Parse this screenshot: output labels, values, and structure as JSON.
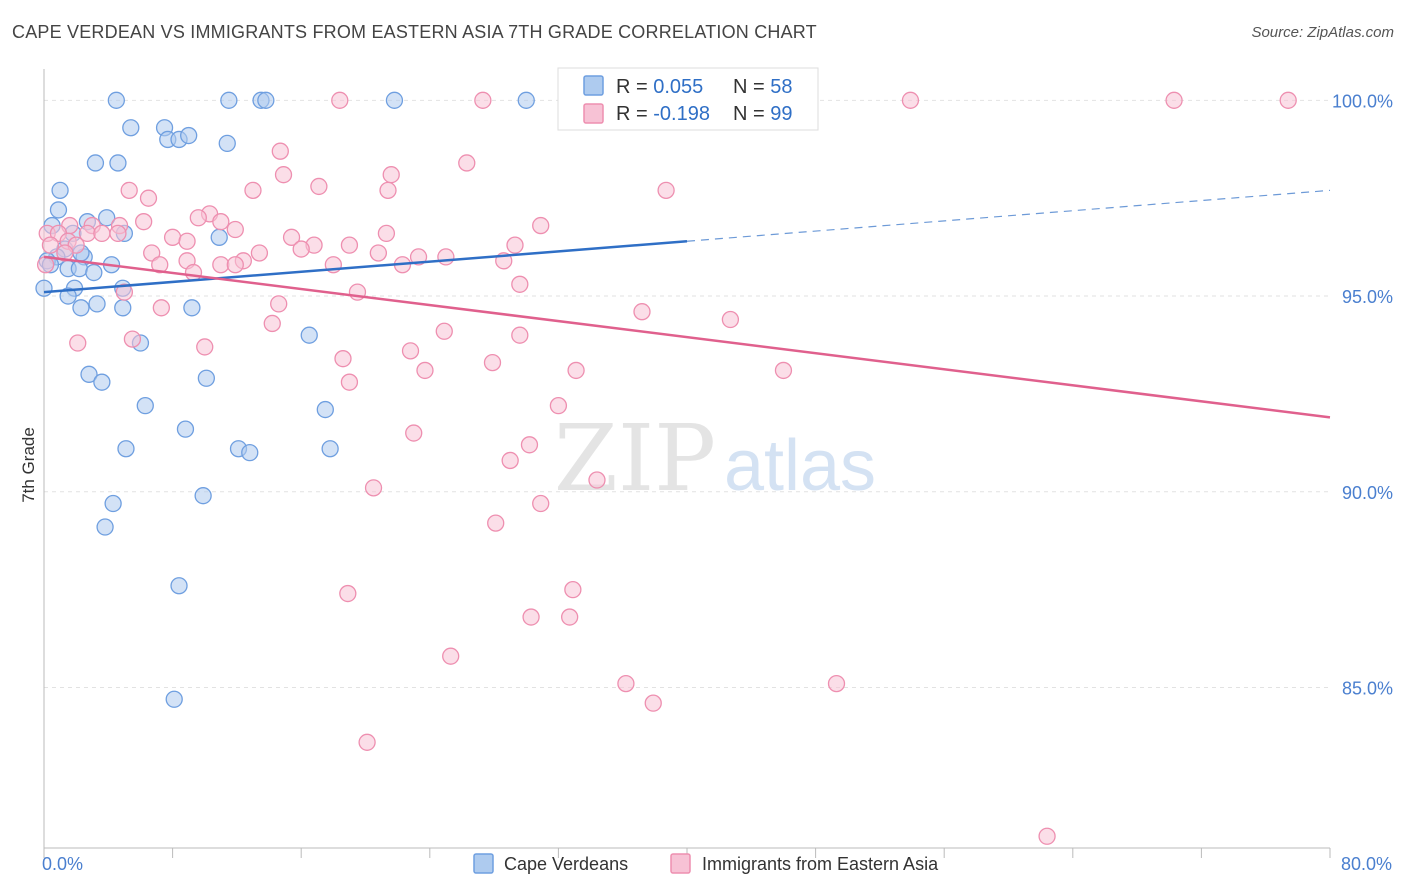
{
  "chart_data": {
    "type": "scatter",
    "title": "CAPE VERDEAN VS IMMIGRANTS FROM EASTERN ASIA 7TH GRADE CORRELATION CHART",
    "source": "Source: ZipAtlas.com",
    "ylabel": "7th Grade",
    "xlim": [
      0,
      80
    ],
    "ylim": [
      80.9,
      100.8
    ],
    "x_tick_labels": [
      {
        "value": 0,
        "label": "0.0%"
      },
      {
        "value": 80,
        "label": "80.0%"
      }
    ],
    "y_tick_labels": [
      {
        "value": 85,
        "label": "85.0%"
      },
      {
        "value": 90,
        "label": "90.0%"
      },
      {
        "value": 95,
        "label": "95.0%"
      },
      {
        "value": 100,
        "label": "100.0%"
      }
    ],
    "grid": true,
    "legend_position": "top-center",
    "watermark": {
      "zip": "ZIP",
      "atlas": "atlas"
    },
    "stats": [
      {
        "r_label": "R = ",
        "r_value": "0.055",
        "n_label": "N = ",
        "n_value": "58"
      },
      {
        "r_label": "R = ",
        "r_value": "-0.198",
        "n_label": "N = ",
        "n_value": "99"
      }
    ],
    "series": [
      {
        "name": "Cape Verdeans",
        "color": "#6f9fe0",
        "fill": "#aecbef",
        "line_color": "#2f6fc6",
        "trend": {
          "x0": 0,
          "y0": 95.1,
          "x1": 40,
          "y1": 96.4,
          "x_dash_end": 80,
          "y_dash_end": 97.7
        },
        "points": [
          [
            4.5,
            100
          ],
          [
            11.5,
            100
          ],
          [
            13.5,
            100
          ],
          [
            13.8,
            100
          ],
          [
            21.8,
            100
          ],
          [
            30,
            100
          ],
          [
            5.4,
            99.3
          ],
          [
            7.5,
            99.3
          ],
          [
            7.7,
            99
          ],
          [
            8.4,
            99
          ],
          [
            9,
            99.1
          ],
          [
            11.4,
            98.9
          ],
          [
            3.2,
            98.4
          ],
          [
            4.6,
            98.4
          ],
          [
            1,
            97.7
          ],
          [
            0.9,
            97.2
          ],
          [
            3.9,
            97
          ],
          [
            2.7,
            96.9
          ],
          [
            0.5,
            96.8
          ],
          [
            1.8,
            96.6
          ],
          [
            5,
            96.6
          ],
          [
            10.9,
            96.5
          ],
          [
            1.3,
            96.2
          ],
          [
            0.8,
            96
          ],
          [
            2.5,
            96
          ],
          [
            2.3,
            96.1
          ],
          [
            0.2,
            95.9
          ],
          [
            0.4,
            95.8
          ],
          [
            4.2,
            95.8
          ],
          [
            1.5,
            95.7
          ],
          [
            2.2,
            95.7
          ],
          [
            3.1,
            95.6
          ],
          [
            0,
            95.2
          ],
          [
            1.9,
            95.2
          ],
          [
            4.9,
            95.2
          ],
          [
            1.5,
            95
          ],
          [
            3.3,
            94.8
          ],
          [
            2.3,
            94.7
          ],
          [
            4.9,
            94.7
          ],
          [
            9.2,
            94.7
          ],
          [
            6,
            93.8
          ],
          [
            16.5,
            94
          ],
          [
            2.8,
            93
          ],
          [
            3.6,
            92.8
          ],
          [
            10.1,
            92.9
          ],
          [
            6.3,
            92.2
          ],
          [
            17.5,
            92.1
          ],
          [
            8.8,
            91.6
          ],
          [
            5.1,
            91.1
          ],
          [
            12.1,
            91.1
          ],
          [
            12.8,
            91
          ],
          [
            17.8,
            91.1
          ],
          [
            4.3,
            89.7
          ],
          [
            9.9,
            89.9
          ],
          [
            3.8,
            89.1
          ],
          [
            8.4,
            87.6
          ],
          [
            8.1,
            84.7
          ]
        ]
      },
      {
        "name": "Immigrants from Eastern Asia",
        "color": "#ee8fb0",
        "fill": "#f7c2d5",
        "line_color": "#e0608d",
        "trend": {
          "x0": 0,
          "y0": 96.0,
          "x1": 80,
          "y1": 91.9
        },
        "points": [
          [
            18.4,
            100
          ],
          [
            27.3,
            100
          ],
          [
            36.3,
            100
          ],
          [
            42,
            100
          ],
          [
            53.9,
            100
          ],
          [
            70.3,
            100
          ],
          [
            77.4,
            100
          ],
          [
            14.7,
            98.7
          ],
          [
            26.3,
            98.4
          ],
          [
            14.9,
            98.1
          ],
          [
            21.6,
            98.1
          ],
          [
            17.1,
            97.8
          ],
          [
            5.3,
            97.7
          ],
          [
            13,
            97.7
          ],
          [
            21.4,
            97.7
          ],
          [
            38.7,
            97.7
          ],
          [
            6.5,
            97.5
          ],
          [
            10.3,
            97.1
          ],
          [
            9.6,
            97
          ],
          [
            11,
            96.9
          ],
          [
            1.6,
            96.8
          ],
          [
            3,
            96.8
          ],
          [
            4.7,
            96.8
          ],
          [
            6.2,
            96.9
          ],
          [
            11.9,
            96.7
          ],
          [
            0.2,
            96.6
          ],
          [
            0.9,
            96.6
          ],
          [
            2.7,
            96.6
          ],
          [
            3.6,
            96.6
          ],
          [
            4.6,
            96.6
          ],
          [
            8,
            96.5
          ],
          [
            21.3,
            96.6
          ],
          [
            30.9,
            96.8
          ],
          [
            1.5,
            96.4
          ],
          [
            2,
            96.3
          ],
          [
            8.9,
            96.4
          ],
          [
            15.4,
            96.5
          ],
          [
            16.8,
            96.3
          ],
          [
            19,
            96.3
          ],
          [
            29.3,
            96.3
          ],
          [
            0.4,
            96.3
          ],
          [
            1.3,
            96.1
          ],
          [
            6.7,
            96.1
          ],
          [
            8.9,
            95.9
          ],
          [
            12.4,
            95.9
          ],
          [
            13.4,
            96.1
          ],
          [
            16,
            96.2
          ],
          [
            20.8,
            96.1
          ],
          [
            23.3,
            96
          ],
          [
            25,
            96
          ],
          [
            0.1,
            95.8
          ],
          [
            7.2,
            95.8
          ],
          [
            11,
            95.8
          ],
          [
            11.9,
            95.8
          ],
          [
            18,
            95.8
          ],
          [
            22.3,
            95.8
          ],
          [
            28.6,
            95.9
          ],
          [
            9.3,
            95.6
          ],
          [
            29.6,
            95.3
          ],
          [
            5,
            95.1
          ],
          [
            19.5,
            95.1
          ],
          [
            14.6,
            94.8
          ],
          [
            7.3,
            94.7
          ],
          [
            37.2,
            94.6
          ],
          [
            42.7,
            94.4
          ],
          [
            14.2,
            94.3
          ],
          [
            24.9,
            94.1
          ],
          [
            29.6,
            94
          ],
          [
            2.1,
            93.8
          ],
          [
            5.5,
            93.9
          ],
          [
            10,
            93.7
          ],
          [
            22.8,
            93.6
          ],
          [
            18.6,
            93.4
          ],
          [
            23.7,
            93.1
          ],
          [
            27.9,
            93.3
          ],
          [
            33.1,
            93.1
          ],
          [
            46,
            93.1
          ],
          [
            19,
            92.8
          ],
          [
            32,
            92.2
          ],
          [
            23,
            91.5
          ],
          [
            29,
            90.8
          ],
          [
            34.4,
            90.3
          ],
          [
            30.2,
            91.2
          ],
          [
            20.5,
            90.1
          ],
          [
            30.9,
            89.7
          ],
          [
            28.1,
            89.2
          ],
          [
            18.9,
            87.4
          ],
          [
            32.9,
            87.5
          ],
          [
            30.3,
            86.8
          ],
          [
            32.7,
            86.8
          ],
          [
            25.3,
            85.8
          ],
          [
            36.2,
            85.1
          ],
          [
            37.9,
            84.6
          ],
          [
            49.3,
            85.1
          ],
          [
            20.1,
            83.6
          ],
          [
            62.4,
            81.2
          ]
        ]
      }
    ]
  }
}
